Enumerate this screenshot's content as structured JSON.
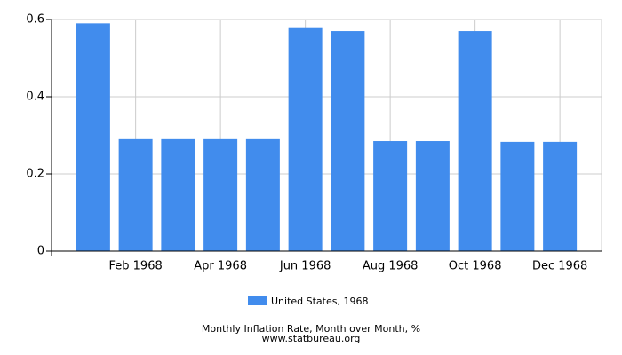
{
  "chart_data": {
    "type": "bar",
    "title": "Monthly Inflation Rate, Month over Month, %",
    "source": "www.statbureau.org",
    "categories": [
      null,
      "Feb 1968",
      null,
      "Apr 1968",
      null,
      "Jun 1968",
      null,
      "Aug 1968",
      null,
      "Oct 1968",
      null,
      "Dec 1968"
    ],
    "series": [
      {
        "name": "United States, 1968",
        "color": "#418ced",
        "values": [
          0.59,
          0.29,
          0.29,
          0.29,
          0.29,
          0.58,
          0.57,
          0.285,
          0.285,
          0.57,
          0.283,
          0.283
        ]
      }
    ],
    "ylim": [
      0,
      0.6
    ],
    "yticks": [
      0,
      0.2,
      0.4,
      0.6
    ],
    "grid": true
  }
}
